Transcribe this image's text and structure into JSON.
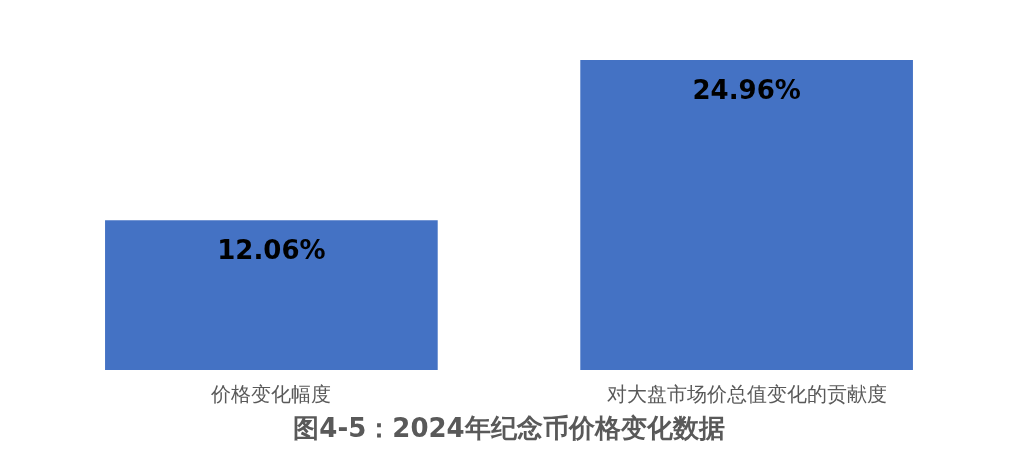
{
  "chart_data": {
    "type": "bar",
    "title": "图4-5：2024年纪念币价格变化数据",
    "categories": [
      "价格变化幅度",
      "对大盘市场价总值变化的贡献度"
    ],
    "values": [
      12.06,
      24.96
    ],
    "value_labels": [
      "12.06%",
      "24.96%"
    ],
    "color": "#4472c4",
    "grid": false
  }
}
